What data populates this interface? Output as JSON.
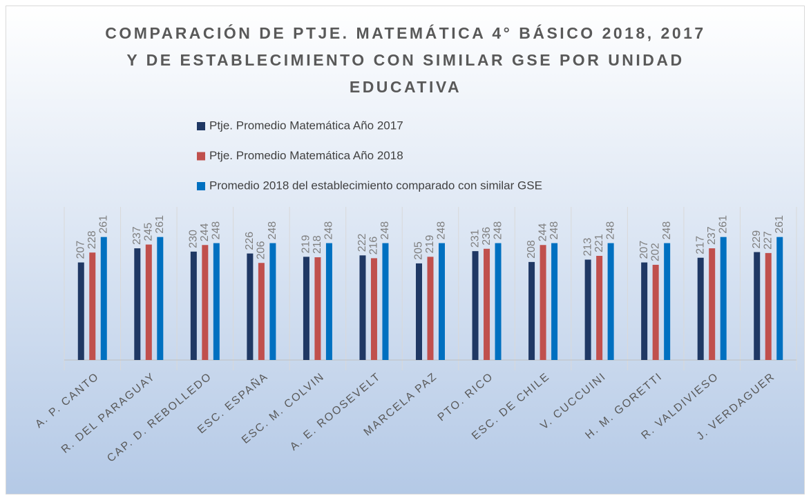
{
  "chart_data": {
    "type": "bar",
    "title": [
      "COMPARACIÓN DE PTJE. MATEMÁTICA 4° BÁSICO 2018, 2017",
      "Y DE ESTABLECIMIENTO CON SIMILAR GSE POR UNIDAD",
      "EDUCATIVA"
    ],
    "categories": [
      "A. P. CANTO",
      "R. DEL PARAGUAY",
      "CAP. D. REBOLLEDO",
      "ESC. ESPAÑA",
      "ESC. M. COLVIN",
      "A. E. ROOSEVELT",
      "MARCELA PAZ",
      "PTO. RICO",
      "ESC. DE CHILE",
      "V. CUCCUINI",
      "H. M. GORETTI",
      "R. VALDIVIESO",
      "J. VERDAGUER"
    ],
    "series": [
      {
        "name": "Ptje. Promedio Matemática Año 2017",
        "color": "#1f3864",
        "values": [
          207,
          237,
          230,
          226,
          219,
          222,
          205,
          231,
          208,
          213,
          207,
          217,
          229
        ]
      },
      {
        "name": "Ptje. Promedio Matemática Año 2018",
        "color": "#c0504d",
        "values": [
          228,
          245,
          244,
          206,
          218,
          216,
          219,
          236,
          244,
          221,
          202,
          237,
          227
        ]
      },
      {
        "name": "Promedio 2018 del establecimiento comparado con similar GSE",
        "color": "#0070c0",
        "values": [
          261,
          261,
          248,
          248,
          248,
          248,
          248,
          248,
          248,
          248,
          248,
          261,
          261
        ]
      }
    ],
    "ylim": [
      0,
      300
    ]
  }
}
